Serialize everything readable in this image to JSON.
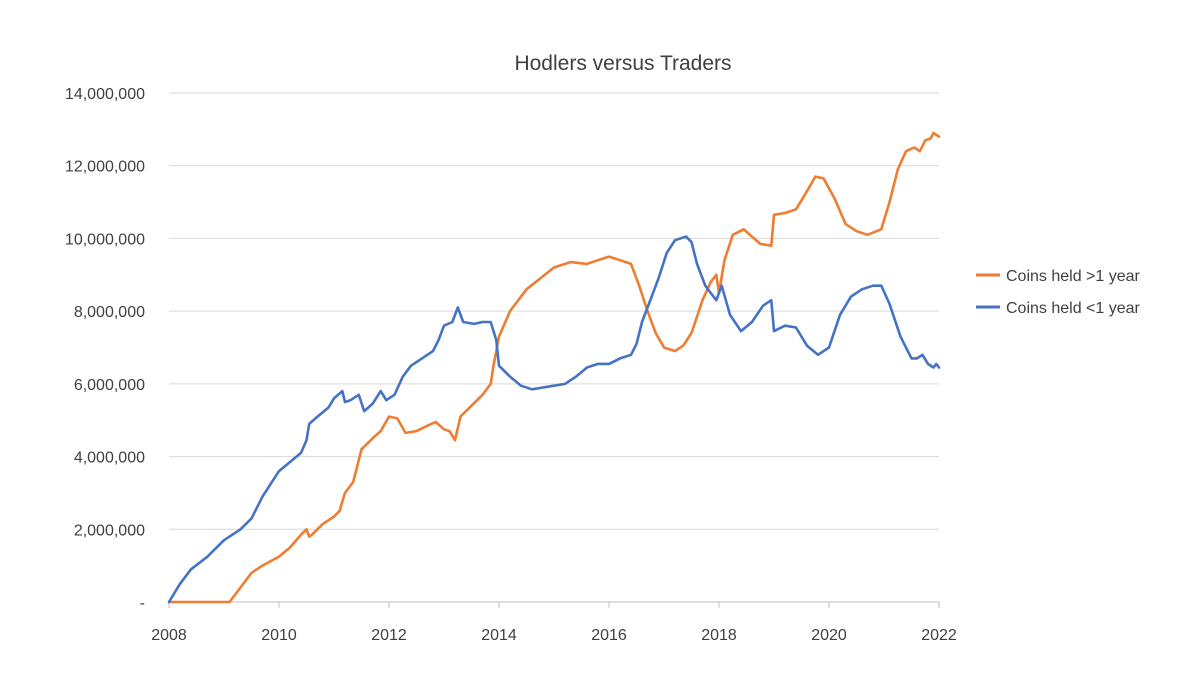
{
  "chart_data": {
    "type": "line",
    "title": "Hodlers versus Traders",
    "xlabel": "",
    "ylabel": "",
    "xlim": [
      2008,
      2022
    ],
    "ylim": [
      0,
      14000000
    ],
    "x_ticks": [
      2008,
      2010,
      2012,
      2014,
      2016,
      2018,
      2020,
      2022
    ],
    "x_tick_labels": [
      "2008",
      "2010",
      "2012",
      "2014",
      "2016",
      "2018",
      "2020",
      "2022"
    ],
    "y_ticks": [
      0,
      2000000,
      4000000,
      6000000,
      8000000,
      10000000,
      12000000,
      14000000
    ],
    "y_tick_labels": [
      "-",
      "2,000,000",
      "4,000,000",
      "6,000,000",
      "8,000,000",
      "10,000,000",
      "12,000,000",
      "14,000,000"
    ],
    "grid": "horizontal",
    "legend_position": "right",
    "series": [
      {
        "name": "Coins held >1 year",
        "color": "#ed7d31",
        "points": [
          [
            2008.0,
            0
          ],
          [
            2009.0,
            0
          ],
          [
            2009.1,
            0
          ],
          [
            2009.3,
            400000
          ],
          [
            2009.5,
            800000
          ],
          [
            2009.7,
            1000000
          ],
          [
            2010.0,
            1250000
          ],
          [
            2010.2,
            1500000
          ],
          [
            2010.4,
            1850000
          ],
          [
            2010.5,
            2000000
          ],
          [
            2010.55,
            1800000
          ],
          [
            2010.6,
            1850000
          ],
          [
            2010.8,
            2150000
          ],
          [
            2011.0,
            2350000
          ],
          [
            2011.1,
            2500000
          ],
          [
            2011.2,
            3000000
          ],
          [
            2011.35,
            3300000
          ],
          [
            2011.5,
            4200000
          ],
          [
            2011.7,
            4500000
          ],
          [
            2011.85,
            4700000
          ],
          [
            2012.0,
            5100000
          ],
          [
            2012.15,
            5050000
          ],
          [
            2012.3,
            4650000
          ],
          [
            2012.5,
            4700000
          ],
          [
            2012.7,
            4850000
          ],
          [
            2012.85,
            4950000
          ],
          [
            2013.0,
            4750000
          ],
          [
            2013.1,
            4700000
          ],
          [
            2013.2,
            4450000
          ],
          [
            2013.3,
            5100000
          ],
          [
            2013.5,
            5400000
          ],
          [
            2013.7,
            5700000
          ],
          [
            2013.85,
            6000000
          ],
          [
            2013.9,
            6500000
          ],
          [
            2014.0,
            7300000
          ],
          [
            2014.2,
            8000000
          ],
          [
            2014.5,
            8600000
          ],
          [
            2014.75,
            8900000
          ],
          [
            2015.0,
            9200000
          ],
          [
            2015.3,
            9350000
          ],
          [
            2015.6,
            9300000
          ],
          [
            2015.8,
            9400000
          ],
          [
            2016.0,
            9500000
          ],
          [
            2016.2,
            9400000
          ],
          [
            2016.4,
            9300000
          ],
          [
            2016.55,
            8700000
          ],
          [
            2016.7,
            8000000
          ],
          [
            2016.85,
            7400000
          ],
          [
            2017.0,
            7000000
          ],
          [
            2017.2,
            6900000
          ],
          [
            2017.35,
            7050000
          ],
          [
            2017.5,
            7400000
          ],
          [
            2017.7,
            8300000
          ],
          [
            2017.85,
            8800000
          ],
          [
            2017.95,
            9000000
          ],
          [
            2018.0,
            8500000
          ],
          [
            2018.1,
            9400000
          ],
          [
            2018.25,
            10100000
          ],
          [
            2018.45,
            10250000
          ],
          [
            2018.6,
            10050000
          ],
          [
            2018.75,
            9850000
          ],
          [
            2018.95,
            9800000
          ],
          [
            2019.0,
            10650000
          ],
          [
            2019.2,
            10700000
          ],
          [
            2019.4,
            10800000
          ],
          [
            2019.6,
            11300000
          ],
          [
            2019.75,
            11700000
          ],
          [
            2019.9,
            11650000
          ],
          [
            2020.1,
            11100000
          ],
          [
            2020.3,
            10400000
          ],
          [
            2020.5,
            10200000
          ],
          [
            2020.7,
            10100000
          ],
          [
            2020.95,
            10250000
          ],
          [
            2021.1,
            11000000
          ],
          [
            2021.25,
            11900000
          ],
          [
            2021.4,
            12400000
          ],
          [
            2021.55,
            12500000
          ],
          [
            2021.65,
            12400000
          ],
          [
            2021.75,
            12700000
          ],
          [
            2021.85,
            12750000
          ],
          [
            2021.9,
            12900000
          ],
          [
            2022.0,
            12800000
          ]
        ]
      },
      {
        "name": "Coins held <1 year",
        "color": "#4472c4",
        "points": [
          [
            2008.0,
            0
          ],
          [
            2008.2,
            500000
          ],
          [
            2008.4,
            900000
          ],
          [
            2008.7,
            1250000
          ],
          [
            2009.0,
            1700000
          ],
          [
            2009.3,
            2000000
          ],
          [
            2009.5,
            2300000
          ],
          [
            2009.7,
            2900000
          ],
          [
            2010.0,
            3600000
          ],
          [
            2010.2,
            3850000
          ],
          [
            2010.4,
            4100000
          ],
          [
            2010.5,
            4450000
          ],
          [
            2010.55,
            4900000
          ],
          [
            2010.7,
            5100000
          ],
          [
            2010.9,
            5350000
          ],
          [
            2011.0,
            5600000
          ],
          [
            2011.15,
            5800000
          ],
          [
            2011.2,
            5500000
          ],
          [
            2011.3,
            5550000
          ],
          [
            2011.45,
            5700000
          ],
          [
            2011.55,
            5250000
          ],
          [
            2011.7,
            5450000
          ],
          [
            2011.85,
            5800000
          ],
          [
            2011.95,
            5550000
          ],
          [
            2012.1,
            5700000
          ],
          [
            2012.25,
            6200000
          ],
          [
            2012.4,
            6500000
          ],
          [
            2012.6,
            6700000
          ],
          [
            2012.8,
            6900000
          ],
          [
            2012.9,
            7200000
          ],
          [
            2013.0,
            7600000
          ],
          [
            2013.15,
            7700000
          ],
          [
            2013.25,
            8100000
          ],
          [
            2013.35,
            7700000
          ],
          [
            2013.55,
            7650000
          ],
          [
            2013.7,
            7700000
          ],
          [
            2013.85,
            7700000
          ],
          [
            2013.95,
            7200000
          ],
          [
            2014.0,
            6500000
          ],
          [
            2014.2,
            6200000
          ],
          [
            2014.4,
            5950000
          ],
          [
            2014.6,
            5850000
          ],
          [
            2014.8,
            5900000
          ],
          [
            2015.0,
            5950000
          ],
          [
            2015.2,
            6000000
          ],
          [
            2015.4,
            6200000
          ],
          [
            2015.6,
            6450000
          ],
          [
            2015.8,
            6550000
          ],
          [
            2016.0,
            6550000
          ],
          [
            2016.2,
            6700000
          ],
          [
            2016.4,
            6800000
          ],
          [
            2016.5,
            7100000
          ],
          [
            2016.6,
            7700000
          ],
          [
            2016.75,
            8300000
          ],
          [
            2016.9,
            8900000
          ],
          [
            2017.05,
            9600000
          ],
          [
            2017.2,
            9950000
          ],
          [
            2017.4,
            10050000
          ],
          [
            2017.5,
            9900000
          ],
          [
            2017.6,
            9300000
          ],
          [
            2017.75,
            8700000
          ],
          [
            2017.85,
            8500000
          ],
          [
            2017.95,
            8300000
          ],
          [
            2018.05,
            8700000
          ],
          [
            2018.2,
            7900000
          ],
          [
            2018.4,
            7450000
          ],
          [
            2018.6,
            7700000
          ],
          [
            2018.8,
            8150000
          ],
          [
            2018.95,
            8300000
          ],
          [
            2019.0,
            7450000
          ],
          [
            2019.2,
            7600000
          ],
          [
            2019.4,
            7550000
          ],
          [
            2019.6,
            7050000
          ],
          [
            2019.8,
            6800000
          ],
          [
            2020.0,
            7000000
          ],
          [
            2020.2,
            7900000
          ],
          [
            2020.4,
            8400000
          ],
          [
            2020.6,
            8600000
          ],
          [
            2020.8,
            8700000
          ],
          [
            2020.95,
            8700000
          ],
          [
            2021.1,
            8200000
          ],
          [
            2021.3,
            7300000
          ],
          [
            2021.5,
            6700000
          ],
          [
            2021.6,
            6700000
          ],
          [
            2021.7,
            6800000
          ],
          [
            2021.8,
            6550000
          ],
          [
            2021.9,
            6450000
          ],
          [
            2021.95,
            6550000
          ],
          [
            2022.0,
            6450000
          ]
        ]
      }
    ]
  }
}
